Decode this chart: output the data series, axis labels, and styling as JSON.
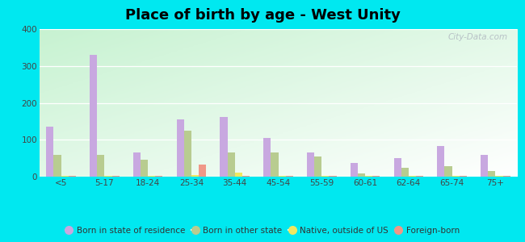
{
  "title": "Place of birth by age - West Unity",
  "categories": [
    "<5",
    "5-17",
    "18-24",
    "25-34",
    "35-44",
    "45-54",
    "55-59",
    "60-61",
    "62-64",
    "65-74",
    "75+"
  ],
  "series": {
    "Born in state of residence": [
      135,
      330,
      65,
      155,
      162,
      105,
      65,
      38,
      50,
      82,
      60
    ],
    "Born in other state": [
      60,
      60,
      45,
      125,
      65,
      65,
      55,
      8,
      25,
      28,
      15
    ],
    "Native, outside of US": [
      3,
      3,
      3,
      5,
      10,
      3,
      3,
      3,
      3,
      3,
      3
    ],
    "Foreign-born": [
      3,
      3,
      3,
      32,
      3,
      3,
      3,
      3,
      3,
      3,
      3
    ]
  },
  "colors": {
    "Born in state of residence": "#c8a8e0",
    "Born in other state": "#b8cc90",
    "Native, outside of US": "#f0e860",
    "Foreign-born": "#f09888"
  },
  "ylim": [
    0,
    400
  ],
  "yticks": [
    0,
    100,
    200,
    300,
    400
  ],
  "outer_background": "#00e8f0",
  "title_fontsize": 13,
  "bar_width": 0.17,
  "watermark": "City-Data.com"
}
